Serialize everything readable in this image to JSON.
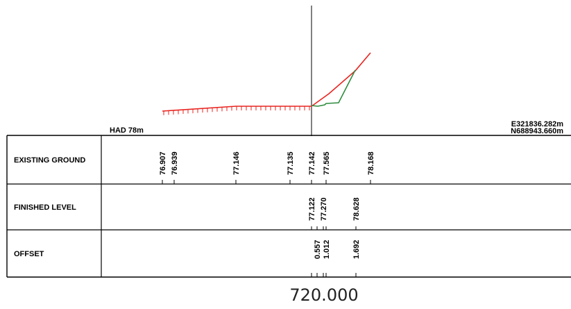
{
  "header": {
    "datum_label": "HAD 78m",
    "easting": "E321836.282m",
    "northing": "N688943.660m"
  },
  "rows": {
    "existing_ground": "EXISTING GROUND",
    "finished_level": "FINISHED LEVEL",
    "offset": "OFFSET"
  },
  "existing_ground_values": [
    "76.907",
    "76.939",
    "77.146",
    "77.135",
    "77.142",
    "77.565",
    "78.168"
  ],
  "finished_level_values": [
    "77.122",
    "77.270",
    "78.628"
  ],
  "offset_values": [
    "0.557",
    "1.012",
    "1.692"
  ],
  "section_title": "720.000",
  "colors": {
    "existing_ground_line": "#e8231f",
    "finished_level_line": "#2e8b3e",
    "grid": "#000000"
  }
}
